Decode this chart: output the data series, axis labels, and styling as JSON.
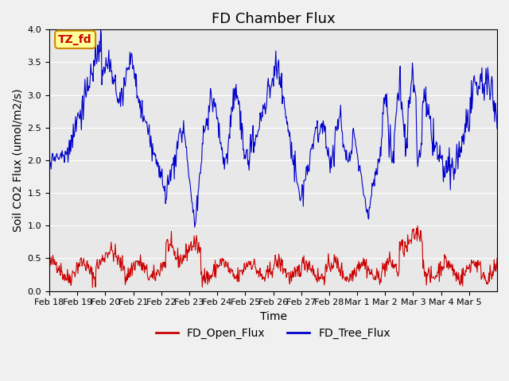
{
  "title": "FD Chamber Flux",
  "ylabel": "Soil CO2 Flux (umol/m2/s)",
  "xlabel": "Time",
  "ylim": [
    0.0,
    4.0
  ],
  "yticks": [
    0.0,
    0.5,
    1.0,
    1.5,
    2.0,
    2.5,
    3.0,
    3.5,
    4.0
  ],
  "xtick_labels": [
    "Feb 18",
    "Feb 19",
    "Feb 20",
    "Feb 21",
    "Feb 22",
    "Feb 23",
    "Feb 24",
    "Feb 25",
    "Feb 26",
    "Feb 27",
    "Feb 28",
    "Mar 1",
    "Mar 2",
    "Mar 3",
    "Mar 4",
    "Mar 5"
  ],
  "open_flux_color": "#cc0000",
  "tree_flux_color": "#0000cc",
  "background_color": "#e8e8e8",
  "fig_background_color": "#f0f0f0",
  "annotation_text": "TZ_fd",
  "annotation_bg": "#ffff99",
  "annotation_border": "#cc8800",
  "legend_labels": [
    "FD_Open_Flux",
    "FD_Tree_Flux"
  ],
  "title_fontsize": 13,
  "label_fontsize": 10,
  "tick_fontsize": 8,
  "n_days": 16,
  "n_per_day": 48
}
